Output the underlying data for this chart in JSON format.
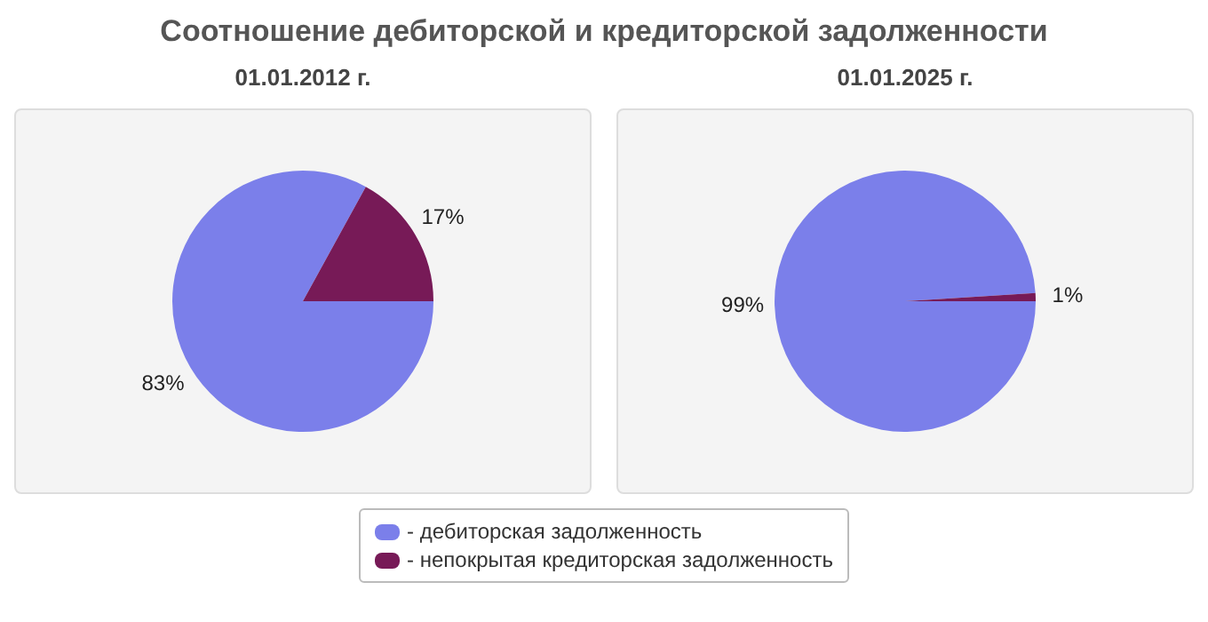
{
  "chart_data": [
    {
      "type": "pie",
      "title": "Соотношение дебиторской и кредиторской задолженности",
      "subtitle": "01.01.2012 г.",
      "categories": [
        "- дебиторская задолженность",
        "- непокрытая кредиторская задолженность"
      ],
      "values": [
        83,
        17
      ],
      "colors": [
        "#7b7fea",
        "#771a57"
      ],
      "value_labels": [
        "83%",
        "17%"
      ],
      "legend": "bottom"
    },
    {
      "type": "pie",
      "subtitle": "01.01.2025 г.",
      "values": [
        99,
        1
      ],
      "colors": [
        "#7b7fea",
        "#771a57"
      ],
      "value_labels": [
        "99%",
        "1%"
      ]
    }
  ]
}
